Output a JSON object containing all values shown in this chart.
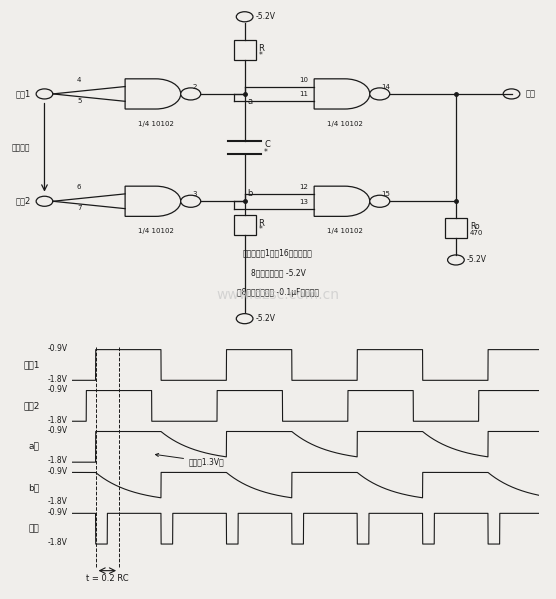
{
  "bg_color": "#f0eeeb",
  "circuit_caption_lines": [
    "集成电路的1脚和16脚为接地端",
    "8脚为电源正源 -5.2V",
    "在8脚与地之间接 -0.1μF帧路电容"
  ],
  "watermark": "www.dzsc.com.cn",
  "waveform_labels": [
    "输入1",
    "输入2",
    "a点",
    "b点",
    "输出"
  ],
  "threshold_label": "阀値（1.3V）",
  "time_label": "t = 0.2 RC",
  "lc": "#1a1a1a",
  "fc": "#1a1a1a",
  "wm_color": "#c8c8c8"
}
